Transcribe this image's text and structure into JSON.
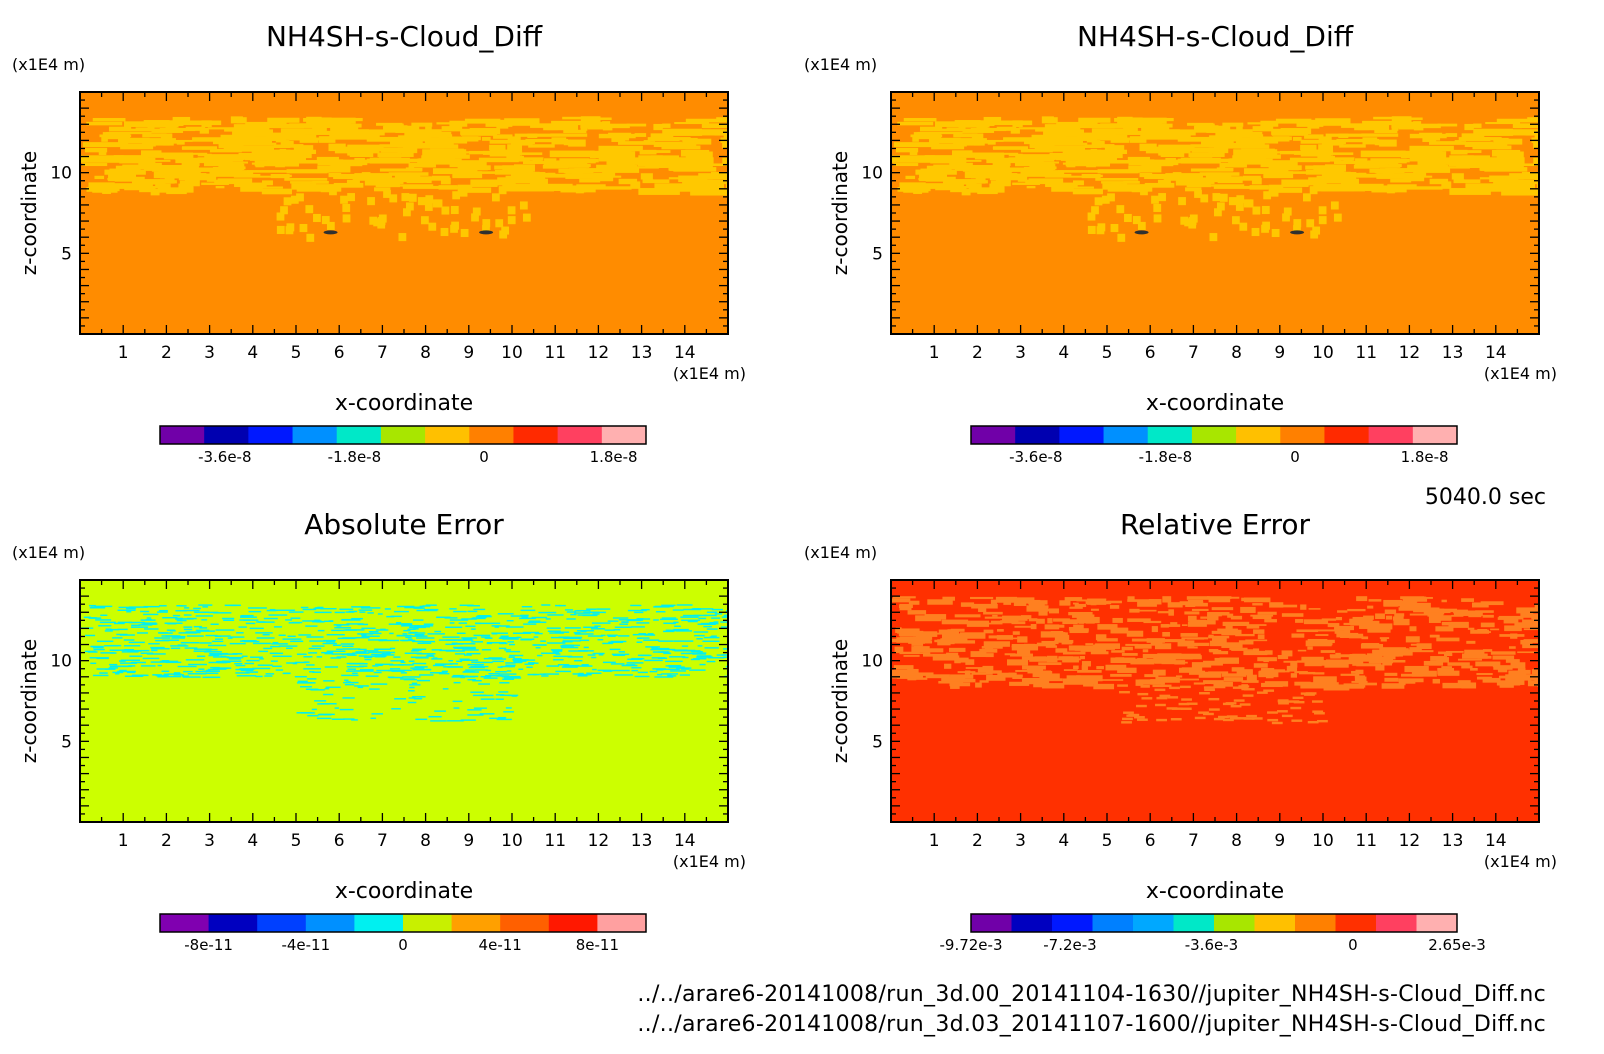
{
  "time_label": "5040.0 sec",
  "footer": {
    "file_1": "../../arare6-20141008/run_3d.00_20141104-1630//jupiter_NH4SH-s-Cloud_Diff.nc",
    "file_2": "../../arare6-20141008/run_3d.03_20141107-1600//jupiter_NH4SH-s-Cloud_Diff.nc"
  },
  "chart_data": [
    {
      "type": "heatmap",
      "title": "NH4SH-s-Cloud_Diff",
      "xlabel": "x-coordinate",
      "ylabel": "z-coordinate",
      "x_unit": "(x1E4 m)",
      "y_unit": "(x1E4 m)",
      "xlim": [
        0,
        15
      ],
      "ylim": [
        0,
        15
      ],
      "x_ticks": [
        "1",
        "2",
        "3",
        "4",
        "5",
        "6",
        "7",
        "8",
        "9",
        "10",
        "11",
        "12",
        "13",
        "14"
      ],
      "y_ticks": [
        "5",
        "10"
      ],
      "background_color": "#ff8c00",
      "pattern_color": "#ffc800",
      "pattern": "cloud",
      "cloud_z_range": [
        9,
        13.5
      ],
      "colorbar": {
        "colors": [
          "#7000a8",
          "#0000b0",
          "#0018ff",
          "#0090ff",
          "#00e8c8",
          "#a8e600",
          "#ffc000",
          "#ff8000",
          "#ff2a00",
          "#ff4060",
          "#ffb0b0"
        ],
        "tick_labels": [
          "-3.6e-8",
          "-1.8e-8",
          "0",
          "1.8e-8"
        ],
        "tick_values": [
          -3.6e-08,
          -1.8e-08,
          0,
          1.8e-08
        ],
        "range": [
          -4.5e-08,
          2.25e-08
        ]
      }
    },
    {
      "type": "heatmap",
      "title": "NH4SH-s-Cloud_Diff",
      "xlabel": "x-coordinate",
      "ylabel": "z-coordinate",
      "x_unit": "(x1E4 m)",
      "y_unit": "(x1E4 m)",
      "xlim": [
        0,
        15
      ],
      "ylim": [
        0,
        15
      ],
      "x_ticks": [
        "1",
        "2",
        "3",
        "4",
        "5",
        "6",
        "7",
        "8",
        "9",
        "10",
        "11",
        "12",
        "13",
        "14"
      ],
      "y_ticks": [
        "5",
        "10"
      ],
      "background_color": "#ff8c00",
      "pattern_color": "#ffc800",
      "pattern": "cloud",
      "cloud_z_range": [
        9,
        13.5
      ],
      "colorbar": {
        "colors": [
          "#7000a8",
          "#0000b0",
          "#0018ff",
          "#0090ff",
          "#00e8c8",
          "#a8e600",
          "#ffc000",
          "#ff8000",
          "#ff2a00",
          "#ff4060",
          "#ffb0b0"
        ],
        "tick_labels": [
          "-3.6e-8",
          "-1.8e-8",
          "0",
          "1.8e-8"
        ],
        "tick_values": [
          -3.6e-08,
          -1.8e-08,
          0,
          1.8e-08
        ],
        "range": [
          -4.5e-08,
          2.25e-08
        ]
      }
    },
    {
      "type": "heatmap",
      "title": "Absolute Error",
      "xlabel": "x-coordinate",
      "ylabel": "z-coordinate",
      "x_unit": "(x1E4 m)",
      "y_unit": "(x1E4 m)",
      "xlim": [
        0,
        15
      ],
      "ylim": [
        0,
        15
      ],
      "x_ticks": [
        "1",
        "2",
        "3",
        "4",
        "5",
        "6",
        "7",
        "8",
        "9",
        "10",
        "11",
        "12",
        "13",
        "14"
      ],
      "y_ticks": [
        "5",
        "10"
      ],
      "background_color": "#ccff00",
      "pattern_color": "#00f0f0",
      "pattern": "speckle",
      "cloud_z_range": [
        9,
        13.5
      ],
      "colorbar": {
        "colors": [
          "#8000b0",
          "#0000c0",
          "#0040ff",
          "#0090ff",
          "#00f0f0",
          "#c8f000",
          "#ffa000",
          "#ff6000",
          "#ff1800",
          "#ffa0a0"
        ],
        "tick_labels": [
          "-8e-11",
          "-4e-11",
          "0",
          "4e-11",
          "8e-11"
        ],
        "tick_values": [
          -8e-11,
          -4e-11,
          0,
          4e-11,
          8e-11
        ],
        "range": [
          -1e-10,
          1e-10
        ]
      }
    },
    {
      "type": "heatmap",
      "title": "Relative Error",
      "xlabel": "x-coordinate",
      "ylabel": "z-coordinate",
      "x_unit": "(x1E4 m)",
      "y_unit": "(x1E4 m)",
      "xlim": [
        0,
        15
      ],
      "ylim": [
        0,
        15
      ],
      "x_ticks": [
        "1",
        "2",
        "3",
        "4",
        "5",
        "6",
        "7",
        "8",
        "9",
        "10",
        "11",
        "12",
        "13",
        "14"
      ],
      "y_ticks": [
        "5",
        "10"
      ],
      "background_color": "#ff3000",
      "pattern_color": "#ff8020",
      "pattern": "blotch",
      "cloud_z_range": [
        8.5,
        14
      ],
      "colorbar": {
        "colors": [
          "#7000a8",
          "#0000c0",
          "#0018ff",
          "#0080ff",
          "#00a8ff",
          "#00e8c8",
          "#a8e600",
          "#ffc000",
          "#ff8000",
          "#ff3000",
          "#ff4060",
          "#ffb0b0"
        ],
        "tick_labels": [
          "-9.72e-3",
          "-7.2e-3",
          "-3.6e-3",
          "0",
          "2.65e-3"
        ],
        "tick_values": [
          -0.00972,
          -0.0072,
          -0.0036,
          0,
          0.00265
        ],
        "range": [
          -0.00972,
          0.00265
        ]
      }
    }
  ]
}
